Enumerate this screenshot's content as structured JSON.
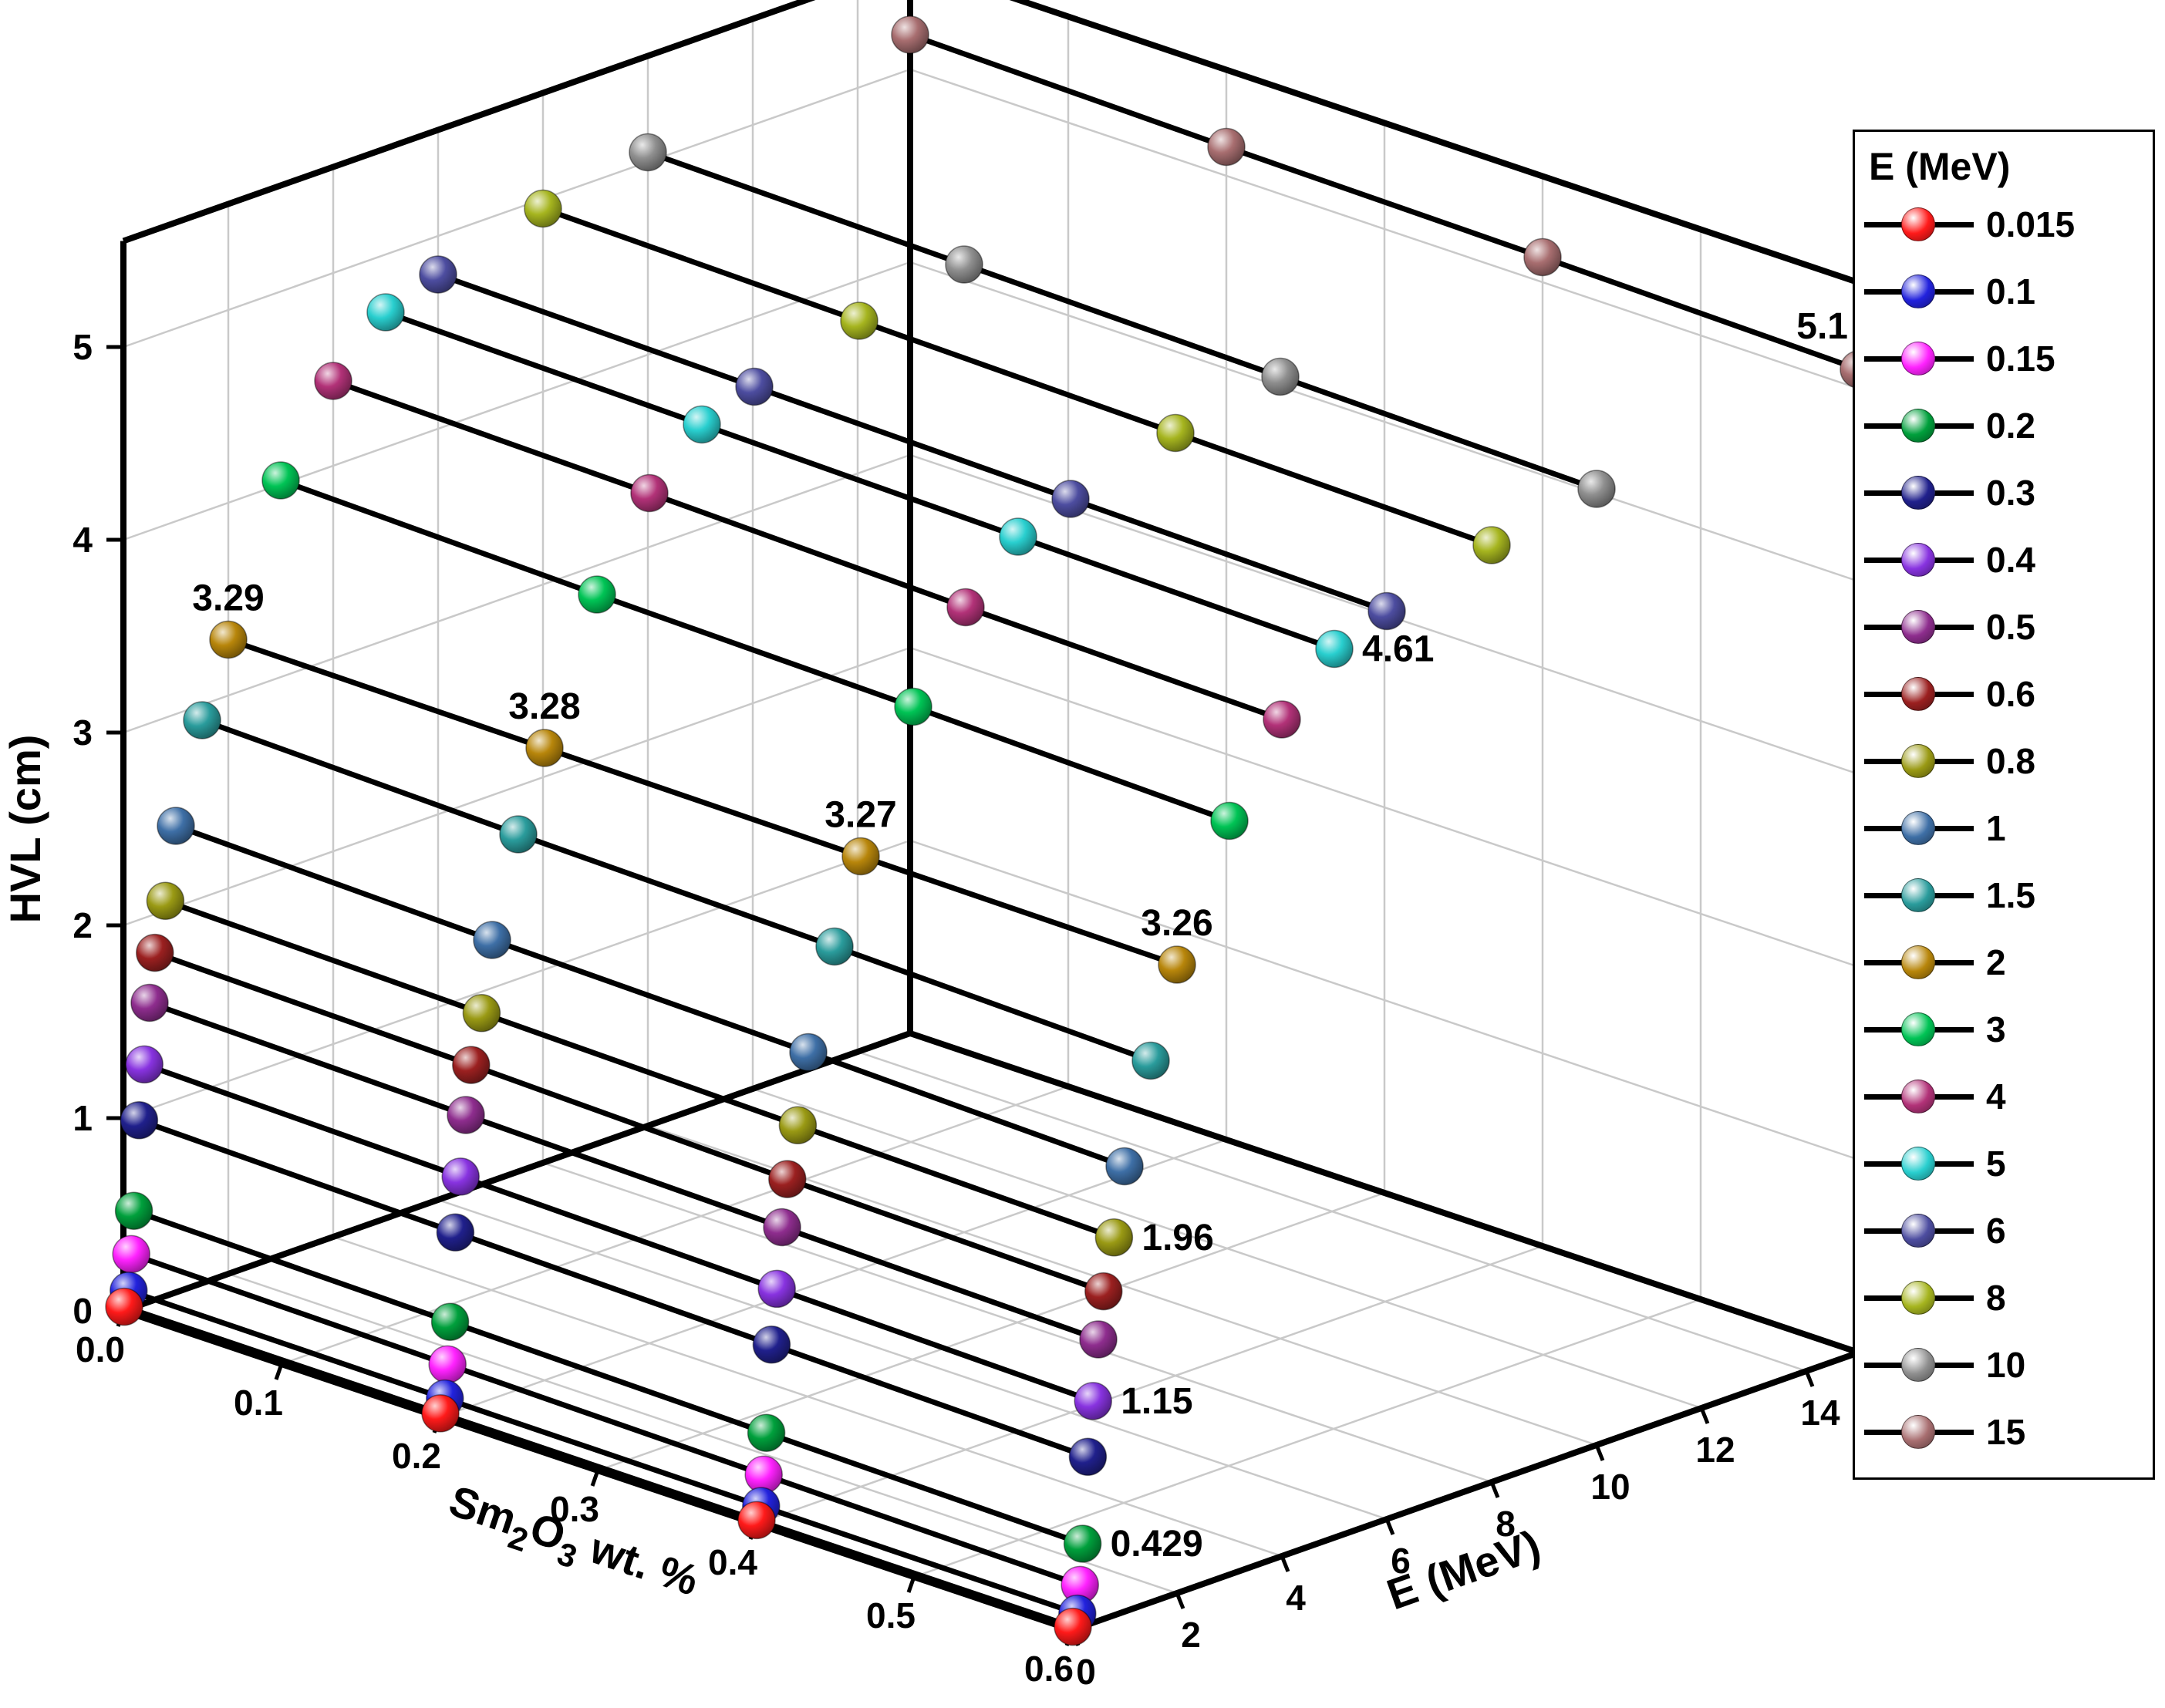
{
  "figure": {
    "background": "#ffffff"
  },
  "chart_data": {
    "type": "scatter",
    "subtype": "3d-scatter-lines",
    "title": "",
    "xlabel": "Sm2O3 wt. %",
    "xlabel_parts": [
      {
        "t": "Sm",
        "sub": false
      },
      {
        "t": "2",
        "sub": true
      },
      {
        "t": "O",
        "sub": false
      },
      {
        "t": "3",
        "sub": true
      },
      {
        "t": " wt. %",
        "sub": false
      }
    ],
    "ylabel": "E (MeV)",
    "zlabel": "HVL (cm)",
    "x_range": [
      0,
      0.6
    ],
    "y_range": [
      0,
      15
    ],
    "z_range": [
      0,
      5.55
    ],
    "x_ticks": [
      "0.0",
      "0.1",
      "0.2",
      "0.3",
      "0.4",
      "0.5",
      "0.6"
    ],
    "y_ticks": [
      "0",
      "2",
      "4",
      "6",
      "8",
      "10",
      "12",
      "14"
    ],
    "z_ticks": [
      "0",
      "1",
      "2",
      "3",
      "4",
      "5"
    ],
    "grid": true,
    "legend": {
      "title": "E (MeV)",
      "position": "right"
    },
    "x_categories": [
      0.0,
      0.2,
      0.4,
      0.6
    ],
    "series": [
      {
        "label": "0.015",
        "energy": 0.015,
        "color": "#ff1a1a",
        "values": [
          0.02,
          0.019,
          0.017,
          0.016
        ]
      },
      {
        "label": "0.1",
        "energy": 0.1,
        "color": "#2222dd",
        "values": [
          0.095,
          0.088,
          0.082,
          0.076
        ]
      },
      {
        "label": "0.15",
        "energy": 0.15,
        "color": "#ff22ff",
        "values": [
          0.28,
          0.26,
          0.24,
          0.22
        ]
      },
      {
        "label": "0.2",
        "energy": 0.2,
        "color": "#00a03c",
        "values": [
          0.5,
          0.476,
          0.452,
          0.429
        ]
      },
      {
        "label": "0.3",
        "energy": 0.3,
        "color": "#20208c",
        "values": [
          0.96,
          0.93,
          0.9,
          0.87
        ]
      },
      {
        "label": "0.4",
        "energy": 0.4,
        "color": "#8833e0",
        "values": [
          1.24,
          1.21,
          1.18,
          1.15
        ]
      },
      {
        "label": "0.5",
        "energy": 0.5,
        "color": "#8e2d8e",
        "values": [
          1.55,
          1.52,
          1.49,
          1.46
        ]
      },
      {
        "label": "0.6",
        "energy": 0.6,
        "color": "#9b2020",
        "values": [
          1.8,
          1.77,
          1.73,
          1.7
        ]
      },
      {
        "label": "0.8",
        "energy": 0.8,
        "color": "#9a9a14",
        "values": [
          2.05,
          2.02,
          1.99,
          1.96
        ]
      },
      {
        "label": "1",
        "energy": 1,
        "color": "#3e6fa6",
        "values": [
          2.42,
          2.38,
          2.35,
          2.31
        ]
      },
      {
        "label": "1.5",
        "energy": 1.5,
        "color": "#2a9c9c",
        "values": [
          2.92,
          2.88,
          2.85,
          2.81
        ]
      },
      {
        "label": "2",
        "energy": 2,
        "color": "#b8860b",
        "values": [
          3.29,
          3.28,
          3.27,
          3.26
        ]
      },
      {
        "label": "3",
        "energy": 3,
        "color": "#00c455",
        "values": [
          4.02,
          3.98,
          3.95,
          3.91
        ]
      },
      {
        "label": "4",
        "energy": 4,
        "color": "#b23278",
        "values": [
          4.44,
          4.41,
          4.37,
          4.34
        ]
      },
      {
        "label": "5",
        "energy": 5,
        "color": "#29cfcf",
        "values": [
          4.7,
          4.67,
          4.64,
          4.61
        ]
      },
      {
        "label": "6",
        "energy": 6,
        "color": "#4d4da0",
        "values": [
          4.8,
          4.77,
          4.74,
          4.71
        ]
      },
      {
        "label": "8",
        "energy": 8,
        "color": "#a6b51f",
        "values": [
          4.95,
          4.92,
          4.89,
          4.86
        ]
      },
      {
        "label": "10",
        "energy": 10,
        "color": "#8f8f8f",
        "values": [
          5.05,
          5.02,
          4.99,
          4.96
        ]
      },
      {
        "label": "15",
        "energy": 15,
        "color": "#a86e70",
        "values": [
          5.18,
          5.15,
          5.13,
          5.1
        ]
      }
    ],
    "annotations": [
      {
        "series": "2",
        "point": 0,
        "text": "3.29",
        "placement": "above"
      },
      {
        "series": "2",
        "point": 1,
        "text": "3.28",
        "placement": "above"
      },
      {
        "series": "2",
        "point": 2,
        "text": "3.27",
        "placement": "above"
      },
      {
        "series": "2",
        "point": 3,
        "text": "3.26",
        "placement": "above"
      },
      {
        "series": "15",
        "point": 3,
        "text": "5.1",
        "placement": "above-left"
      },
      {
        "series": "5",
        "point": 3,
        "text": "4.61",
        "placement": "right"
      },
      {
        "series": "0.8",
        "point": 3,
        "text": "1.96",
        "placement": "right"
      },
      {
        "series": "0.4",
        "point": 3,
        "text": "1.15",
        "placement": "right"
      },
      {
        "series": "0.2",
        "point": 3,
        "text": "0.429",
        "placement": "right"
      }
    ]
  }
}
